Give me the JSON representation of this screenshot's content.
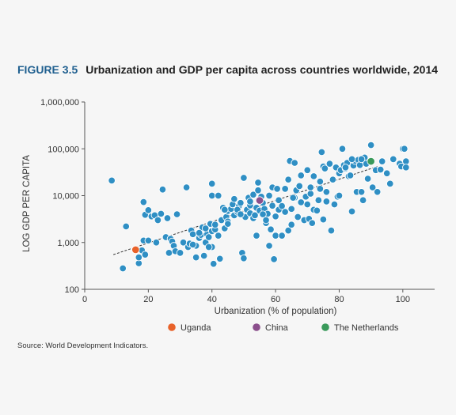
{
  "figure": {
    "label": "FIGURE 3.5",
    "title": "Urbanization and GDP per capita across countries worldwide, 2014",
    "source": "Source: World Development Indicators."
  },
  "colors": {
    "point": "#2f8fc4",
    "point_stroke": "#ffffff",
    "trend": "#333333",
    "uganda": "#e8622a",
    "china": "#8b4f8c",
    "netherlands": "#3a9a5b"
  },
  "chart_data": {
    "type": "scatter",
    "xlabel": "Urbanization (% of population)",
    "ylabel": "LOG GDP PER CAPITA",
    "xlim": [
      0,
      110
    ],
    "ylim": [
      100,
      1000000
    ],
    "y_scale": "log",
    "grid": false,
    "legend_position": "bottom",
    "x_ticks": [
      0,
      20,
      40,
      60,
      80,
      100
    ],
    "y_ticks": [
      100,
      1000,
      10000,
      100000,
      1000000
    ],
    "x_tick_labels": [
      "0",
      "20",
      "40",
      "60",
      "80",
      "100"
    ],
    "y_tick_labels": [
      "100",
      "1,000",
      "10,000",
      "100,000",
      "1,000,000"
    ],
    "trendline": {
      "style": "dashed",
      "x": [
        9,
        92
      ],
      "y": [
        550,
        42000
      ]
    },
    "highlighted": [
      {
        "name": "Uganda",
        "x": 16,
        "y": 700,
        "color_key": "uganda"
      },
      {
        "name": "China",
        "x": 55,
        "y": 7900,
        "color_key": "china"
      },
      {
        "name": "The Netherlands",
        "x": 90,
        "y": 54000,
        "color_key": "netherlands"
      }
    ],
    "points": [
      [
        8.5,
        21000
      ],
      [
        13,
        2200
      ],
      [
        12,
        280
      ],
      [
        17,
        360
      ],
      [
        17,
        480
      ],
      [
        18,
        680
      ],
      [
        18.5,
        1100
      ],
      [
        19,
        550
      ],
      [
        18.5,
        7300
      ],
      [
        19,
        3900
      ],
      [
        20,
        4900
      ],
      [
        20,
        1100
      ],
      [
        21,
        3600
      ],
      [
        22,
        3800
      ],
      [
        22.5,
        1000
      ],
      [
        23,
        3000
      ],
      [
        24,
        4100
      ],
      [
        24.5,
        13500
      ],
      [
        25.5,
        1300
      ],
      [
        26,
        3300
      ],
      [
        26.5,
        600
      ],
      [
        27,
        1200
      ],
      [
        27.5,
        1050
      ],
      [
        28,
        850
      ],
      [
        28.5,
        650
      ],
      [
        29,
        4000
      ],
      [
        30,
        600
      ],
      [
        31,
        1000
      ],
      [
        32,
        15000
      ],
      [
        32.5,
        800
      ],
      [
        33,
        950
      ],
      [
        33.5,
        1800
      ],
      [
        34,
        1500
      ],
      [
        35,
        850
      ],
      [
        35,
        480
      ],
      [
        36,
        1250
      ],
      [
        36.5,
        1450
      ],
      [
        37,
        2100
      ],
      [
        37.5,
        520
      ],
      [
        38,
        1000
      ],
      [
        38.5,
        1500
      ],
      [
        39,
        1300
      ],
      [
        39.5,
        2500
      ],
      [
        40,
        1750
      ],
      [
        40,
        18000
      ],
      [
        40,
        10000
      ],
      [
        40.5,
        350
      ],
      [
        40,
        800
      ],
      [
        41,
        1900
      ],
      [
        41,
        2400
      ],
      [
        42,
        10000
      ],
      [
        42.5,
        450
      ],
      [
        43,
        3000
      ],
      [
        43.5,
        5500
      ],
      [
        44,
        2000
      ],
      [
        44.5,
        3500
      ],
      [
        45,
        2800
      ],
      [
        45,
        4700
      ],
      [
        46,
        5200
      ],
      [
        46.5,
        6500
      ],
      [
        47,
        3800
      ],
      [
        48,
        4500
      ],
      [
        48.5,
        6000
      ],
      [
        49,
        7000
      ],
      [
        49.5,
        600
      ],
      [
        50,
        460
      ],
      [
        50,
        24000
      ],
      [
        50.5,
        3500
      ],
      [
        51,
        5000
      ],
      [
        51.5,
        9000
      ],
      [
        52,
        6200
      ],
      [
        52,
        4200
      ],
      [
        53,
        3300
      ],
      [
        53,
        10500
      ],
      [
        53.5,
        3800
      ],
      [
        54,
        1400
      ],
      [
        54,
        5500
      ],
      [
        54.5,
        13000
      ],
      [
        54.5,
        19000
      ],
      [
        55,
        4800
      ],
      [
        55.5,
        9500
      ],
      [
        56,
        7000
      ],
      [
        56.5,
        5200
      ],
      [
        57,
        2600
      ],
      [
        57.5,
        4100
      ],
      [
        58,
        10000
      ],
      [
        58,
        850
      ],
      [
        58.5,
        1900
      ],
      [
        59,
        15000
      ],
      [
        59,
        6100
      ],
      [
        59.5,
        440
      ],
      [
        60,
        3600
      ],
      [
        60,
        1400
      ],
      [
        60.5,
        14000
      ],
      [
        61,
        5000
      ],
      [
        61,
        8000
      ],
      [
        62,
        6000
      ],
      [
        63,
        14000
      ],
      [
        64,
        1800
      ],
      [
        64.5,
        55000
      ],
      [
        64,
        22000
      ],
      [
        65,
        2400
      ],
      [
        65,
        5200
      ],
      [
        66,
        9000
      ],
      [
        66,
        50000
      ],
      [
        66.5,
        13000
      ],
      [
        67,
        3500
      ],
      [
        67.5,
        16000
      ],
      [
        68,
        7200
      ],
      [
        68,
        27000
      ],
      [
        69,
        3000
      ],
      [
        69.5,
        9500
      ],
      [
        70,
        35000
      ],
      [
        70,
        6500
      ],
      [
        70.5,
        3200
      ],
      [
        71,
        11000
      ],
      [
        71.5,
        2600
      ],
      [
        72,
        26000
      ],
      [
        72,
        5000
      ],
      [
        73,
        4800
      ],
      [
        73.5,
        8000
      ],
      [
        74,
        20000
      ],
      [
        74,
        14000
      ],
      [
        74.5,
        85000
      ],
      [
        75,
        42000
      ],
      [
        75,
        3100
      ],
      [
        75.5,
        38000
      ],
      [
        76,
        12000
      ],
      [
        76,
        7500
      ],
      [
        77,
        48000
      ],
      [
        77.5,
        1800
      ],
      [
        78,
        22000
      ],
      [
        78.5,
        6500
      ],
      [
        79,
        40000
      ],
      [
        79.5,
        9500
      ],
      [
        80,
        30000
      ],
      [
        80.5,
        35000
      ],
      [
        81,
        100000
      ],
      [
        81.5,
        45000
      ],
      [
        82,
        38000
      ],
      [
        82.5,
        50000
      ],
      [
        83,
        26000
      ],
      [
        83.5,
        27000
      ],
      [
        84,
        4600
      ],
      [
        84.5,
        44000
      ],
      [
        85,
        55000
      ],
      [
        85.5,
        12000
      ],
      [
        86,
        58000
      ],
      [
        86.5,
        45000
      ],
      [
        87,
        12000
      ],
      [
        87.5,
        8000
      ],
      [
        88,
        65000
      ],
      [
        88.5,
        48000
      ],
      [
        89,
        23000
      ],
      [
        90,
        120000
      ],
      [
        90.5,
        15000
      ],
      [
        91.5,
        35000
      ],
      [
        92,
        12000
      ],
      [
        93,
        36000
      ],
      [
        93.5,
        54000
      ],
      [
        96,
        18000
      ],
      [
        99,
        48000
      ],
      [
        99.5,
        42000
      ],
      [
        100,
        100000
      ],
      [
        100.5,
        100000
      ],
      [
        101,
        54000
      ],
      [
        101,
        40000
      ],
      [
        97,
        60000
      ],
      [
        95,
        30000
      ],
      [
        84,
        60000
      ],
      [
        87,
        60000
      ],
      [
        45,
        2500
      ],
      [
        47,
        8500
      ],
      [
        48,
        5000
      ],
      [
        49,
        4000
      ],
      [
        56,
        4000
      ],
      [
        57,
        3000
      ],
      [
        39,
        800
      ],
      [
        38,
        2000
      ],
      [
        62,
        1400
      ],
      [
        63,
        4500
      ],
      [
        65.5,
        9000
      ],
      [
        71,
        15000
      ],
      [
        80,
        10000
      ],
      [
        82,
        40000
      ],
      [
        34,
        900
      ],
      [
        36,
        1600
      ],
      [
        42,
        1400
      ],
      [
        44,
        5000
      ],
      [
        52,
        7500
      ]
    ]
  }
}
